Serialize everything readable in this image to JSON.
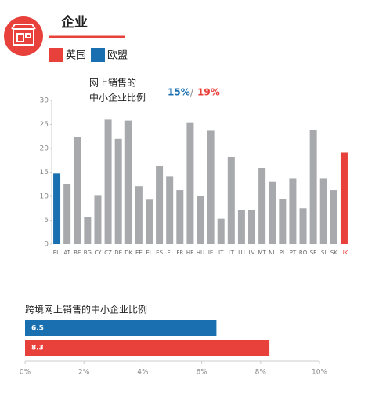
{
  "header": {
    "title": "企业",
    "legend": [
      {
        "name": "英国",
        "color": "#e8403a"
      },
      {
        "name": "欧盟",
        "color": "#1a6fb0"
      }
    ]
  },
  "chart_data": [
    {
      "type": "bar",
      "y_label_lines": [
        "网上销售的",
        "中小企业比例"
      ],
      "annotation": {
        "eu": "15%",
        "sep": "/",
        "uk": "19%"
      },
      "categories": [
        "EU",
        "AT",
        "BE",
        "BG",
        "CY",
        "CZ",
        "DE",
        "DK",
        "EE",
        "EL",
        "ES",
        "FI",
        "FR",
        "HR",
        "HU",
        "IE",
        "IT",
        "LT",
        "LU",
        "LV",
        "MT",
        "NL",
        "PL",
        "PT",
        "RO",
        "SE",
        "SI",
        "SK",
        "UK"
      ],
      "values": [
        14.7,
        12.6,
        22.4,
        5.7,
        10.1,
        26,
        22,
        25.8,
        12.1,
        9.3,
        16.4,
        14.2,
        11.3,
        25.3,
        10,
        23.7,
        5.3,
        18.2,
        7.2,
        7.2,
        15.9,
        13,
        9.5,
        13.7,
        7.5,
        23.9,
        13.7,
        11.3,
        19.1
      ],
      "colors": [
        "#1a6fb0",
        "#a7a9ac",
        "#a7a9ac",
        "#a7a9ac",
        "#a7a9ac",
        "#a7a9ac",
        "#a7a9ac",
        "#a7a9ac",
        "#a7a9ac",
        "#a7a9ac",
        "#a7a9ac",
        "#a7a9ac",
        "#a7a9ac",
        "#a7a9ac",
        "#a7a9ac",
        "#a7a9ac",
        "#a7a9ac",
        "#a7a9ac",
        "#a7a9ac",
        "#a7a9ac",
        "#a7a9ac",
        "#a7a9ac",
        "#a7a9ac",
        "#a7a9ac",
        "#a7a9ac",
        "#a7a9ac",
        "#a7a9ac",
        "#a7a9ac",
        "#e8403a"
      ],
      "ylim": [
        0,
        30
      ],
      "yticks": [
        0,
        5,
        10,
        15,
        20,
        25,
        30
      ]
    },
    {
      "type": "hbar",
      "title": "跨境网上销售的中小企业比例",
      "values": [
        6.5,
        8.3
      ],
      "colors": [
        "#1a6fb0",
        "#e8403a"
      ],
      "xlim": [
        0,
        10
      ],
      "xticks": [
        {
          "value": 0,
          "label": "0%"
        },
        {
          "value": 2,
          "label": "2%"
        },
        {
          "value": 4,
          "label": "4%"
        },
        {
          "value": 6,
          "label": "6%"
        },
        {
          "value": 8,
          "label": "8%"
        },
        {
          "value": 10,
          "label": "10%"
        }
      ]
    }
  ]
}
